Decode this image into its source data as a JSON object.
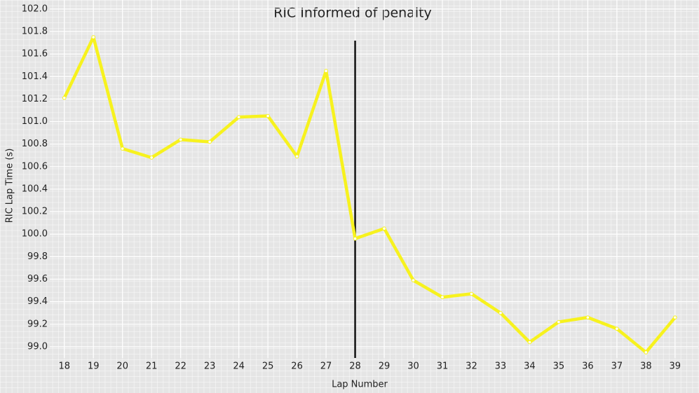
{
  "chart_data": {
    "type": "line",
    "title": "RIC Informed of penalty",
    "x_label": "Lap Number",
    "y_label": "RIC Lap Time (s)",
    "x": [
      18,
      19,
      20,
      21,
      22,
      23,
      24,
      25,
      26,
      27,
      28,
      29,
      30,
      31,
      32,
      33,
      34,
      35,
      36,
      37,
      38,
      39
    ],
    "series": [
      {
        "name": "RIC",
        "color": "#f7f21e",
        "values": [
          101.21,
          101.75,
          100.76,
          100.68,
          100.84,
          100.82,
          101.04,
          101.05,
          100.69,
          101.45,
          99.96,
          100.05,
          99.59,
          99.44,
          99.47,
          99.3,
          99.04,
          99.22,
          99.26,
          99.16,
          98.95,
          99.26
        ]
      }
    ],
    "xlim": [
      17.5,
      39.8
    ],
    "ylim": [
      98.9,
      102.08
    ],
    "xticks": [
      18,
      19,
      20,
      21,
      22,
      23,
      24,
      25,
      26,
      27,
      28,
      29,
      30,
      31,
      32,
      33,
      34,
      35,
      36,
      37,
      38,
      39
    ],
    "yticks": [
      {
        "value": 99,
        "label": "99.0"
      },
      99.2,
      99.4,
      99.6,
      99.8,
      {
        "value": 100,
        "label": "100.0"
      },
      100.2,
      100.4,
      100.6,
      100.8,
      {
        "value": 101,
        "label": "101.0"
      },
      101.2,
      101.4,
      101.6,
      101.8,
      {
        "value": 102,
        "label": "102.0"
      }
    ],
    "vline": 28,
    "vline_color": "#111111",
    "grid": true
  }
}
